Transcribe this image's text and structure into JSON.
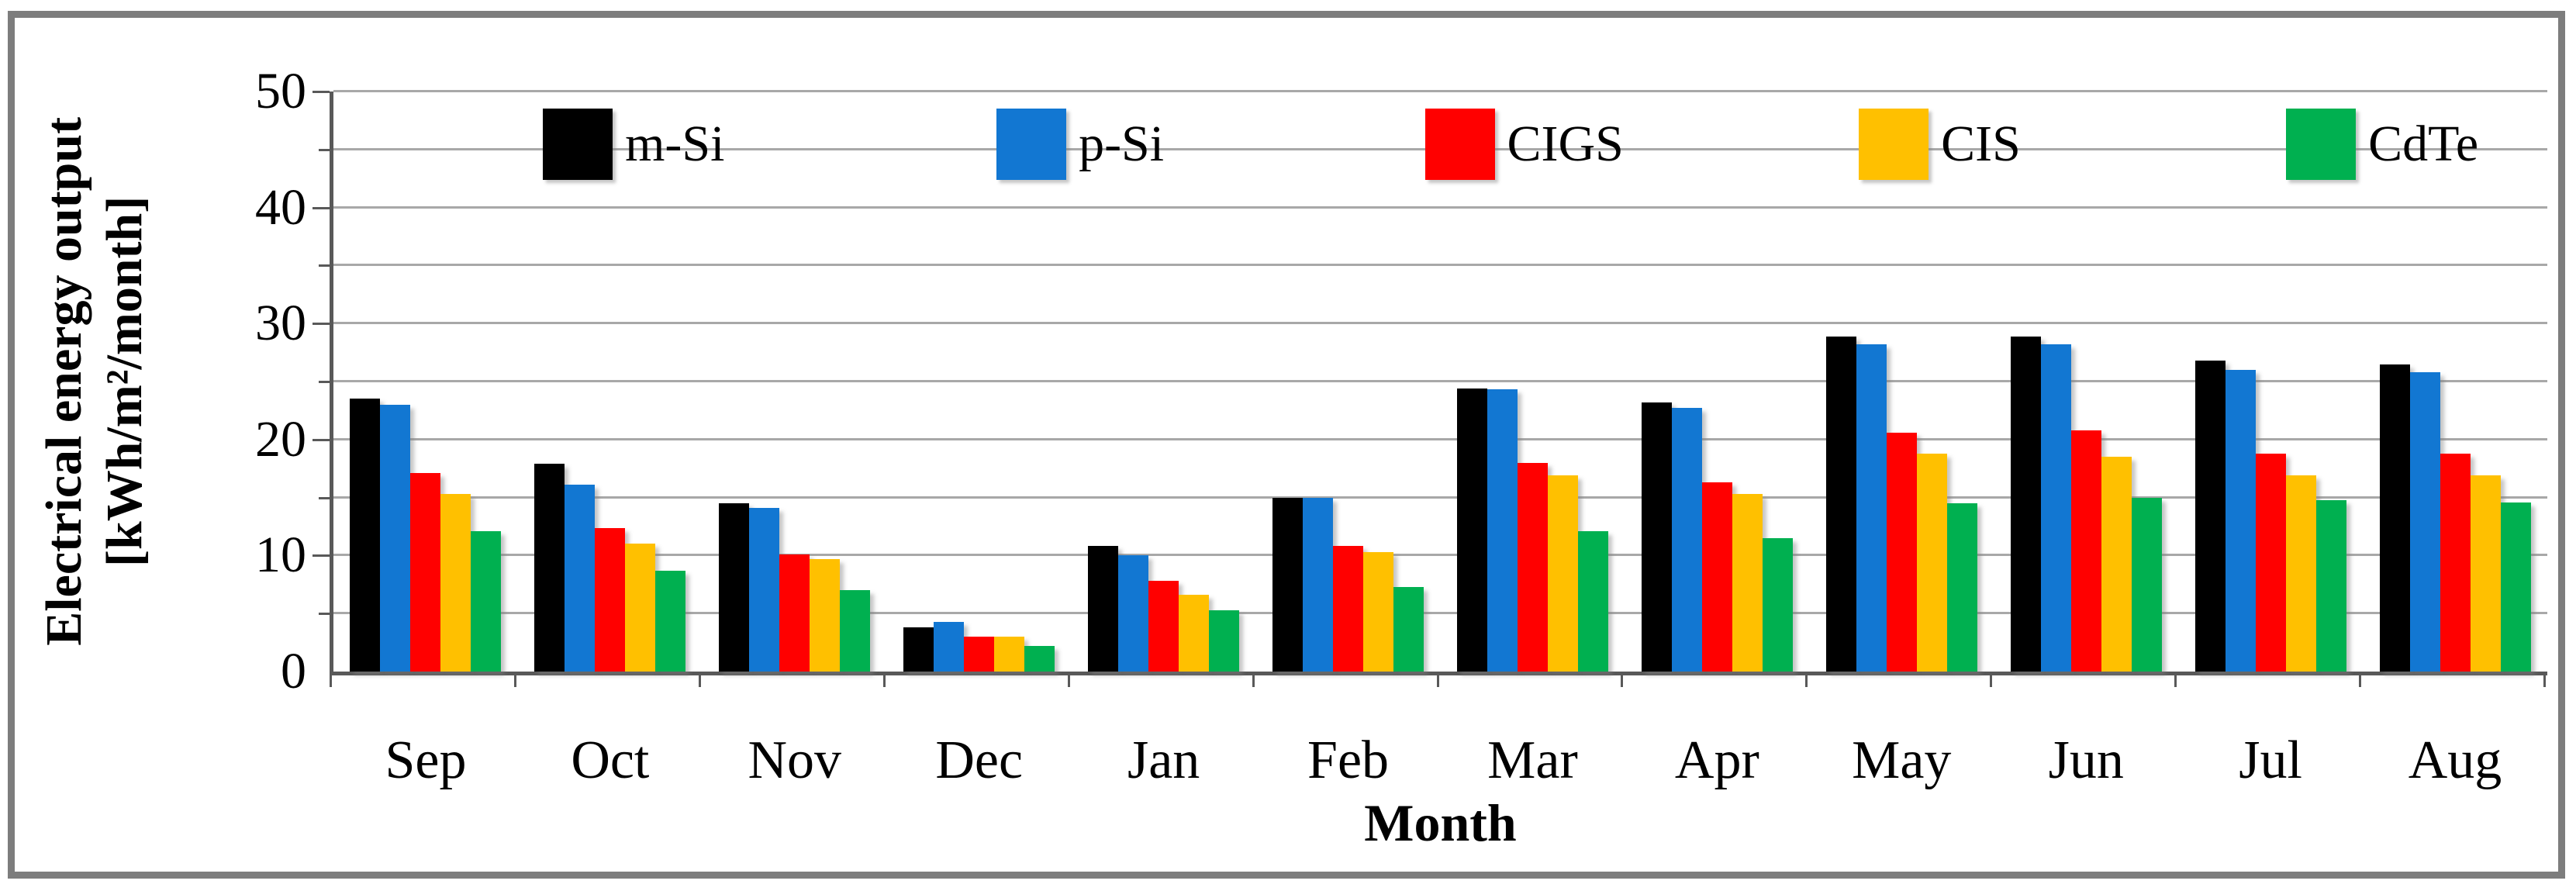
{
  "figure": {
    "border_color": "#7d7d7d",
    "background": "#ffffff",
    "axis_color": "#595959",
    "gridline_color": "#a8a8a8"
  },
  "chart_data": {
    "type": "bar",
    "title": "",
    "xlabel": "Month",
    "ylabel_line1": "Electrical energy output",
    "ylabel_line2": "[kWh/m²/month]",
    "ylim": [
      0,
      50
    ],
    "y_ticks": [
      0,
      10,
      20,
      30,
      40,
      50
    ],
    "gridline_step": 5,
    "grid": "on",
    "legend_position": "top-inside",
    "categories": [
      "Sep",
      "Oct",
      "Nov",
      "Dec",
      "Jan",
      "Feb",
      "Mar",
      "Apr",
      "May",
      "Jun",
      "Jul",
      "Aug"
    ],
    "series": [
      {
        "name": "m-Si",
        "color": "#000000",
        "values": [
          23.5,
          17.9,
          14.5,
          3.8,
          10.8,
          15.0,
          24.4,
          23.2,
          28.9,
          28.9,
          26.8,
          26.5
        ]
      },
      {
        "name": "p-Si",
        "color": "#1277d2",
        "values": [
          23.0,
          16.1,
          14.1,
          4.3,
          10.0,
          15.0,
          24.3,
          22.7,
          28.2,
          28.2,
          26.0,
          25.8
        ]
      },
      {
        "name": "CIGS",
        "color": "#ff0000",
        "values": [
          17.1,
          12.4,
          10.1,
          3.0,
          7.8,
          10.8,
          18.0,
          16.3,
          20.6,
          20.8,
          18.8,
          18.8
        ]
      },
      {
        "name": "CIS",
        "color": "#ffc000",
        "values": [
          15.3,
          11.0,
          9.7,
          3.0,
          6.6,
          10.3,
          16.9,
          15.3,
          18.8,
          18.5,
          16.9,
          16.9
        ]
      },
      {
        "name": "CdTe",
        "color": "#00b050",
        "values": [
          12.1,
          8.7,
          7.0,
          2.2,
          5.3,
          7.3,
          12.1,
          11.5,
          14.5,
          15.0,
          14.8,
          14.6
        ]
      }
    ]
  }
}
